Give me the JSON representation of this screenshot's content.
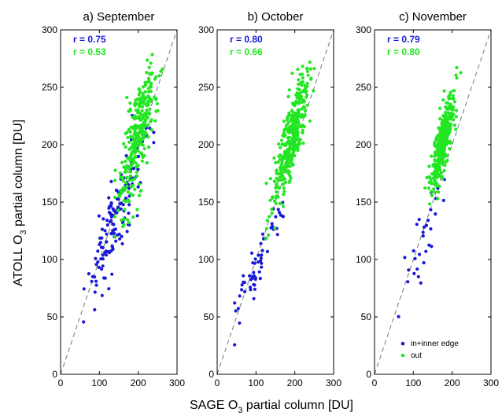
{
  "figure": {
    "ylabel_main": "ATOLL O",
    "ylabel_sub": "3",
    "ylabel_rest": " partial column [DU]",
    "xlabel_main": "SAGE O",
    "xlabel_sub": "3",
    "xlabel_rest": " partial column [DU]"
  },
  "colors": {
    "inner": "#1a1ad6",
    "out": "#22e622",
    "axis": "#000000",
    "diag": "#777777"
  },
  "legend": {
    "entries": [
      {
        "label": "in+inner edge",
        "color_key": "inner"
      },
      {
        "label": "out",
        "color_key": "out"
      }
    ]
  },
  "chart_data": [
    {
      "type": "scatter",
      "title": "a) September",
      "xlim": [
        0,
        300
      ],
      "ylim": [
        0,
        300
      ],
      "xticks": [
        0,
        100,
        200,
        300
      ],
      "yticks": [
        0,
        50,
        100,
        150,
        200,
        250,
        300
      ],
      "stats": [
        {
          "label": "r = 0.75",
          "series": "in+inner edge"
        },
        {
          "label": "r = 0.53",
          "series": "out"
        }
      ],
      "series": [
        {
          "name": "in+inner edge",
          "cloud": {
            "n": 150,
            "x_mean": 140,
            "x_sd": 38,
            "slope": 0.85,
            "intercept": 16,
            "noise": 18,
            "x_min": 55,
            "x_max": 240
          }
        },
        {
          "name": "out",
          "cloud": {
            "n": 330,
            "x_mean": 200,
            "x_sd": 22,
            "slope": 0.95,
            "intercept": 18,
            "noise": 20,
            "x_min": 140,
            "x_max": 265
          }
        }
      ],
      "diagonal": true
    },
    {
      "type": "scatter",
      "title": "b) October",
      "xlim": [
        0,
        300
      ],
      "ylim": [
        0,
        300
      ],
      "xticks": [
        0,
        100,
        200,
        300
      ],
      "yticks": [
        0,
        50,
        100,
        150,
        200,
        250,
        300
      ],
      "stats": [
        {
          "label": "r = 0.80",
          "series": "in+inner edge"
        },
        {
          "label": "r = 0.66",
          "series": "out"
        }
      ],
      "series": [
        {
          "name": "in+inner edge",
          "cloud": {
            "n": 60,
            "x_mean": 110,
            "x_sd": 35,
            "slope": 0.8,
            "intercept": 10,
            "noise": 12,
            "x_min": 45,
            "x_max": 170
          }
        },
        {
          "name": "out",
          "cloud": {
            "n": 380,
            "x_mean": 190,
            "x_sd": 22,
            "slope": 1.0,
            "intercept": 15,
            "noise": 16,
            "x_min": 110,
            "x_max": 250
          }
        }
      ],
      "diagonal": true
    },
    {
      "type": "scatter",
      "title": "c) November",
      "xlim": [
        0,
        300
      ],
      "ylim": [
        0,
        300
      ],
      "xticks": [
        0,
        100,
        200,
        300
      ],
      "yticks": [
        0,
        50,
        100,
        150,
        200,
        250,
        300
      ],
      "stats": [
        {
          "label": "r = 0.79",
          "series": "in+inner edge"
        },
        {
          "label": "r = 0.80",
          "series": "out"
        }
      ],
      "series": [
        {
          "name": "in+inner edge",
          "cloud": {
            "n": 30,
            "x_mean": 130,
            "x_sd": 30,
            "slope": 0.9,
            "intercept": 5,
            "noise": 15,
            "x_min": 60,
            "x_max": 180
          }
        },
        {
          "name": "out",
          "cloud": {
            "n": 380,
            "x_mean": 175,
            "x_sd": 15,
            "slope": 1.1,
            "intercept": 10,
            "noise": 12,
            "x_min": 130,
            "x_max": 225
          }
        }
      ],
      "diagonal": true
    }
  ]
}
